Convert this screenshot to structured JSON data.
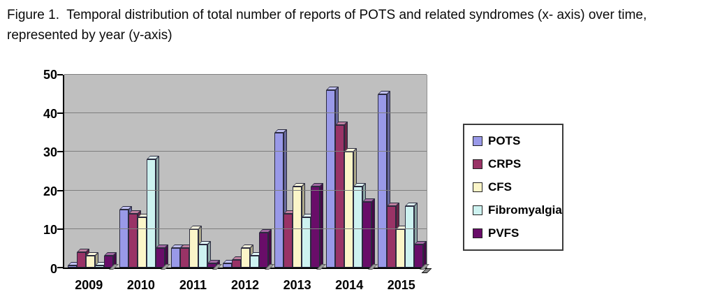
{
  "figure": {
    "caption": "Figure 1.  Temporal distribution of total number of reports of POTS and related syndromes (x- axis) over time, represented by year (y-axis)"
  },
  "chart_data": {
    "type": "bar",
    "title": "",
    "xlabel": "",
    "ylabel": "",
    "categories": [
      "2009",
      "2010",
      "2011",
      "2012",
      "2013",
      "2014",
      "2015"
    ],
    "series": [
      {
        "name": "POTS",
        "color": "#9999E8",
        "values": [
          0.5,
          15,
          5,
          1,
          35,
          46,
          45
        ]
      },
      {
        "name": "CRPS",
        "color": "#993366",
        "values": [
          4,
          14,
          5,
          2,
          14,
          37,
          16
        ]
      },
      {
        "name": "CFS",
        "color": "#FBF5C8",
        "values": [
          3,
          13,
          10,
          5,
          21,
          30,
          10
        ]
      },
      {
        "name": "Fibromyalgia",
        "color": "#CDF2F0",
        "values": [
          0.5,
          28,
          6,
          3,
          13,
          21,
          16
        ]
      },
      {
        "name": "PVFS",
        "color": "#690D69",
        "values": [
          3,
          5,
          1,
          9,
          21,
          17,
          6
        ]
      }
    ],
    "ylim": [
      0,
      50
    ],
    "yticks": [
      0,
      10,
      20,
      30,
      40,
      50
    ],
    "grid": true,
    "legend_position": "right",
    "plot_bg_color": "#BFBFBF",
    "gridline_color": "#7E7E7E",
    "axis_color": "#000000",
    "bar_style": "3d-extruded"
  }
}
